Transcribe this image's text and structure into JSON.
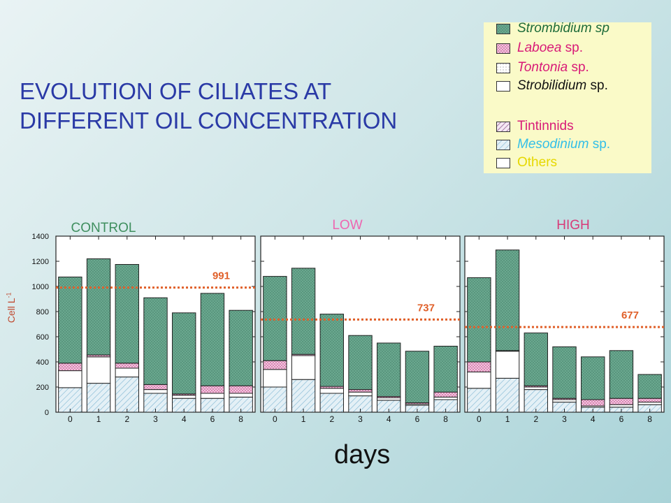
{
  "title": {
    "line1": "EVOLUTION OF CILIATES AT",
    "line2": "DIFFERENT OIL CONCENTRATION"
  },
  "legend": [
    {
      "key": "strombidium",
      "italic": "Strombidium sp",
      "normal": "",
      "text_color": "#1d6b3a",
      "fill": "#6aa88f",
      "pattern": "dots"
    },
    {
      "key": "laboea",
      "italic": "Laboea",
      "normal": " sp.",
      "text_color": "#d81a78",
      "fill": "#f0b6d8",
      "pattern": "dots"
    },
    {
      "key": "tontonia",
      "italic": "Tontonia",
      "normal": " sp.",
      "text_color": "#d81a78",
      "fill": "#ffffff",
      "pattern": "dots"
    },
    {
      "key": "strobilidium",
      "italic": "Strobilidium",
      "normal": " sp.",
      "text_color": "#111111",
      "fill": "#ffffff",
      "pattern": "none"
    },
    {
      "key": "tintinnids",
      "italic": "",
      "normal": "Tintinnids",
      "text_color": "#d81a78",
      "fill": "#e8d8ee",
      "pattern": "hatch"
    },
    {
      "key": "mesodinium",
      "italic": "Mesodinium",
      "normal": " sp.",
      "text_color": "#33bfe8",
      "fill": "#dcebf2",
      "pattern": "hatch"
    },
    {
      "key": "others",
      "italic": "",
      "normal": "Others",
      "text_color": "#e6d800",
      "fill": "#ffffff",
      "pattern": "none"
    }
  ],
  "axes": {
    "ylabel": "Cell L",
    "ylabel_sup": "-1",
    "xlabel": "days",
    "yticks": [
      "0",
      "200",
      "400",
      "600",
      "800",
      "1000",
      "1200",
      "1400"
    ]
  },
  "colors": {
    "strombidium": "#6aa88f",
    "laboea": "#f0b6d8",
    "mesodinium": "#dcebf2",
    "mean_line": "#e0602a",
    "control_title": "#3f8f5f",
    "low_title": "#ee66b0",
    "high_title": "#d83a78"
  },
  "chart_data": [
    {
      "type": "bar",
      "stacked": true,
      "title": "CONTROL",
      "categories": [
        "0",
        "1",
        "2",
        "3",
        "4",
        "6",
        "8"
      ],
      "ylim": [
        0,
        1400
      ],
      "mean": 991,
      "mean_label": "991",
      "series": [
        {
          "name": "Mesodinium sp.",
          "values": [
            195,
            230,
            280,
            150,
            110,
            110,
            120
          ]
        },
        {
          "name": "Strobilidium sp.",
          "values": [
            135,
            210,
            70,
            30,
            25,
            40,
            30
          ]
        },
        {
          "name": "Laboea sp.",
          "values": [
            60,
            15,
            40,
            40,
            10,
            60,
            60
          ]
        },
        {
          "name": "Strombidium sp",
          "values": [
            685,
            765,
            785,
            690,
            645,
            735,
            600
          ]
        }
      ]
    },
    {
      "type": "bar",
      "stacked": true,
      "title": "LOW",
      "categories": [
        "0",
        "1",
        "2",
        "3",
        "4",
        "6",
        "8"
      ],
      "ylim": [
        0,
        1400
      ],
      "mean": 737,
      "mean_label": "737",
      "series": [
        {
          "name": "Mesodinium sp.",
          "values": [
            200,
            260,
            150,
            130,
            95,
            55,
            100
          ]
        },
        {
          "name": "Strobilidium sp.",
          "values": [
            140,
            190,
            40,
            30,
            20,
            10,
            20
          ]
        },
        {
          "name": "Laboea sp.",
          "values": [
            70,
            10,
            15,
            20,
            10,
            10,
            40
          ]
        },
        {
          "name": "Strombidium sp",
          "values": [
            670,
            685,
            575,
            430,
            425,
            410,
            365
          ]
        }
      ]
    },
    {
      "type": "bar",
      "stacked": true,
      "title": "HIGH",
      "categories": [
        "0",
        "1",
        "2",
        "3",
        "4",
        "6",
        "8"
      ],
      "ylim": [
        0,
        1400
      ],
      "mean": 677,
      "mean_label": "677",
      "series": [
        {
          "name": "Mesodinium sp.",
          "values": [
            190,
            270,
            180,
            80,
            40,
            40,
            60
          ]
        },
        {
          "name": "Strobilidium sp.",
          "values": [
            130,
            215,
            20,
            20,
            10,
            20,
            20
          ]
        },
        {
          "name": "Laboea sp.",
          "values": [
            80,
            5,
            10,
            10,
            50,
            50,
            30
          ]
        },
        {
          "name": "Strombidium sp",
          "values": [
            670,
            800,
            420,
            410,
            340,
            380,
            190
          ]
        }
      ]
    }
  ]
}
